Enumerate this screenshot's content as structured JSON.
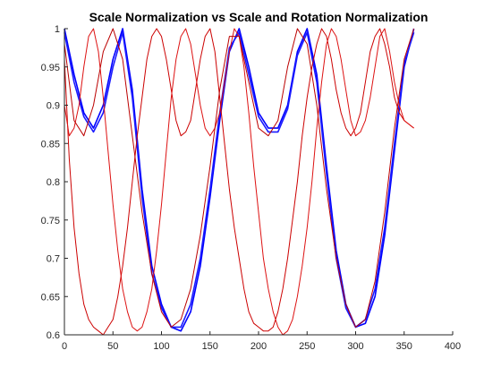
{
  "chart_data": {
    "type": "line",
    "title": "Scale Normalization vs Scale and Rotation Normalization",
    "xlabel": "",
    "ylabel": "",
    "xlim": [
      0,
      400
    ],
    "ylim": [
      0.6,
      1.0
    ],
    "xticks": [
      0,
      50,
      100,
      150,
      200,
      250,
      300,
      350,
      400
    ],
    "yticks": [
      0.6,
      0.65,
      0.7,
      0.75,
      0.8,
      0.85,
      0.9,
      0.95,
      1.0
    ],
    "grid": false,
    "legend": "none",
    "series": [
      {
        "color": "#0000ff",
        "x": [
          0,
          10,
          20,
          30,
          40,
          50,
          60,
          70,
          80,
          90,
          100,
          110,
          120,
          130,
          140,
          150,
          160,
          170,
          180,
          190,
          200,
          210,
          220,
          230,
          240,
          250,
          260,
          270,
          280,
          290,
          300,
          310,
          320,
          330,
          340,
          350,
          360
        ],
        "y": [
          1.0,
          0.94,
          0.89,
          0.87,
          0.9,
          0.96,
          1.0,
          0.92,
          0.79,
          0.69,
          0.64,
          0.61,
          0.605,
          0.63,
          0.69,
          0.78,
          0.88,
          0.97,
          1.0,
          0.95,
          0.89,
          0.87,
          0.87,
          0.9,
          0.97,
          1.0,
          0.94,
          0.82,
          0.71,
          0.64,
          0.61,
          0.615,
          0.65,
          0.73,
          0.84,
          0.95,
          1.0
        ]
      },
      {
        "color": "#1a1aff",
        "x": [
          0,
          10,
          20,
          30,
          40,
          50,
          60,
          70,
          80,
          90,
          100,
          110,
          120,
          130,
          140,
          150,
          160,
          170,
          180,
          190,
          200,
          210,
          220,
          230,
          240,
          250,
          260,
          270,
          280,
          290,
          300,
          310,
          320,
          330,
          340,
          350,
          360
        ],
        "y": [
          0.995,
          0.93,
          0.885,
          0.865,
          0.89,
          0.95,
          0.995,
          0.91,
          0.78,
          0.68,
          0.635,
          0.61,
          0.61,
          0.64,
          0.7,
          0.79,
          0.89,
          0.975,
          0.995,
          0.94,
          0.885,
          0.865,
          0.865,
          0.895,
          0.965,
          0.995,
          0.93,
          0.81,
          0.7,
          0.635,
          0.61,
          0.62,
          0.66,
          0.74,
          0.85,
          0.955,
          0.995
        ]
      },
      {
        "color": "#cc0000",
        "x": [
          0,
          5,
          10,
          15,
          20,
          25,
          30,
          35,
          40,
          45,
          50,
          55,
          60,
          65,
          70,
          75,
          80,
          85,
          90,
          95,
          100,
          105,
          110,
          115,
          120,
          125,
          130,
          135,
          140,
          145,
          150,
          155,
          160,
          165,
          170,
          175,
          180,
          185,
          190,
          195,
          200,
          205,
          210,
          215,
          220,
          225,
          230,
          235,
          240,
          245,
          250,
          255,
          260,
          265,
          270,
          275,
          280,
          285,
          290,
          295,
          300,
          305,
          310,
          315,
          320,
          325,
          330,
          335,
          340,
          345,
          350,
          355,
          360
        ],
        "y": [
          0.96,
          0.83,
          0.74,
          0.68,
          0.64,
          0.62,
          0.61,
          0.605,
          0.6,
          0.61,
          0.62,
          0.65,
          0.69,
          0.74,
          0.8,
          0.86,
          0.91,
          0.96,
          0.99,
          1.0,
          0.99,
          0.96,
          0.92,
          0.88,
          0.86,
          0.865,
          0.88,
          0.92,
          0.96,
          0.99,
          1.0,
          0.97,
          0.91,
          0.85,
          0.79,
          0.74,
          0.7,
          0.66,
          0.63,
          0.615,
          0.61,
          0.605,
          0.605,
          0.61,
          0.63,
          0.66,
          0.7,
          0.75,
          0.8,
          0.86,
          0.91,
          0.95,
          0.98,
          1.0,
          0.99,
          0.96,
          0.92,
          0.89,
          0.87,
          0.86,
          0.87,
          0.89,
          0.93,
          0.97,
          0.99,
          1.0,
          0.98,
          0.95,
          0.91,
          0.89,
          0.88,
          0.875,
          0.87
        ]
      },
      {
        "color": "#dd1111",
        "x": [
          0,
          5,
          10,
          15,
          20,
          25,
          30,
          35,
          40,
          45,
          50,
          55,
          60,
          65,
          70,
          75,
          80,
          85,
          90,
          95,
          100,
          105,
          110,
          115,
          120,
          125,
          130,
          135,
          140,
          145,
          150,
          155,
          160,
          165,
          170,
          175,
          180,
          185,
          190,
          195,
          200,
          205,
          210,
          215,
          220,
          225,
          230,
          235,
          240,
          245,
          250,
          255,
          260,
          265,
          270,
          275,
          280,
          285,
          290,
          295,
          300,
          305,
          310,
          315,
          320,
          325,
          330,
          335,
          340,
          345,
          350,
          355,
          360
        ],
        "y": [
          0.9,
          0.86,
          0.87,
          0.9,
          0.95,
          0.99,
          1.0,
          0.97,
          0.91,
          0.84,
          0.77,
          0.71,
          0.66,
          0.63,
          0.61,
          0.605,
          0.61,
          0.63,
          0.66,
          0.71,
          0.77,
          0.84,
          0.91,
          0.96,
          0.99,
          1.0,
          0.98,
          0.94,
          0.9,
          0.87,
          0.86,
          0.87,
          0.89,
          0.93,
          0.97,
          1.0,
          0.99,
          0.95,
          0.89,
          0.82,
          0.76,
          0.7,
          0.66,
          0.63,
          0.61,
          0.6,
          0.605,
          0.62,
          0.65,
          0.69,
          0.74,
          0.8,
          0.87,
          0.93,
          0.98,
          1.0,
          0.99,
          0.96,
          0.92,
          0.88,
          0.86,
          0.865,
          0.88,
          0.91,
          0.95,
          0.99,
          1.0,
          0.97,
          0.93,
          0.9,
          0.88,
          0.875,
          0.87
        ]
      },
      {
        "color": "#bb0000",
        "x": [
          0,
          10,
          20,
          30,
          40,
          50,
          60,
          70,
          80,
          90,
          100,
          110,
          120,
          130,
          140,
          150,
          160,
          170,
          180,
          190,
          200,
          210,
          220,
          230,
          240,
          250,
          260,
          270,
          280,
          290,
          300,
          310,
          320,
          330,
          340,
          350,
          360
        ],
        "y": [
          0.98,
          0.88,
          0.86,
          0.9,
          0.97,
          1.0,
          0.96,
          0.86,
          0.76,
          0.68,
          0.63,
          0.61,
          0.62,
          0.66,
          0.73,
          0.82,
          0.92,
          0.99,
          0.99,
          0.93,
          0.87,
          0.86,
          0.88,
          0.95,
          1.0,
          0.98,
          0.9,
          0.79,
          0.7,
          0.64,
          0.61,
          0.62,
          0.67,
          0.76,
          0.87,
          0.96,
          1.0
        ]
      }
    ]
  }
}
